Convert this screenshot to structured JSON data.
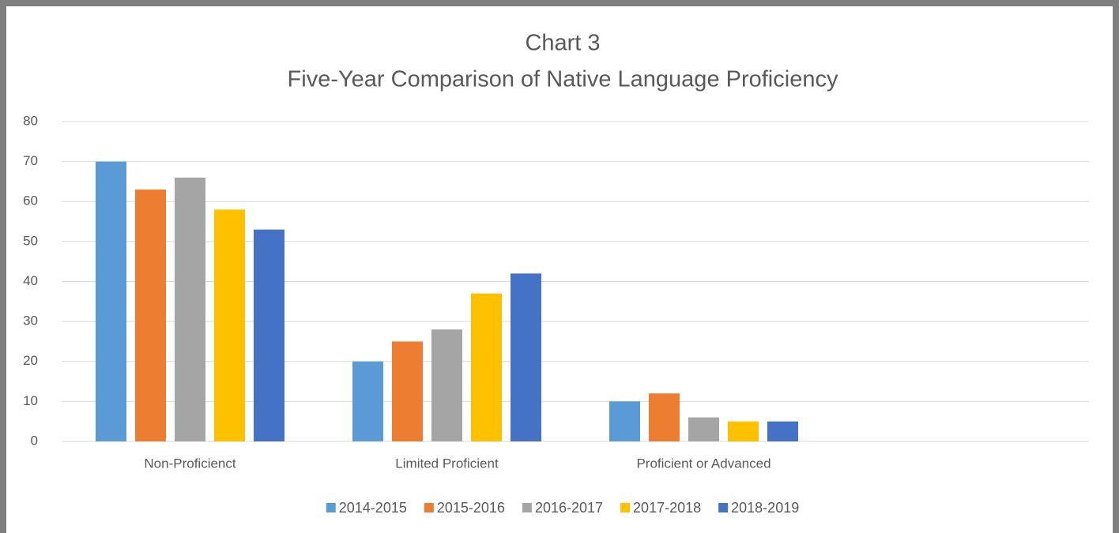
{
  "chart_data": {
    "type": "bar",
    "title": "Chart 3",
    "subtitle": "Five-Year Comparison of Native Language Proficiency",
    "categories": [
      "Non-Proficienct",
      "Limited Proficient",
      "Proficient or Advanced",
      null
    ],
    "series": [
      {
        "name": "2014-2015",
        "color": "#5b9bd5",
        "values": [
          70,
          20,
          10,
          null
        ]
      },
      {
        "name": "2015-2016",
        "color": "#ed7d31",
        "values": [
          63,
          25,
          12,
          null
        ]
      },
      {
        "name": "2016-2017",
        "color": "#a5a5a5",
        "values": [
          66,
          28,
          6,
          null
        ]
      },
      {
        "name": "2017-2018",
        "color": "#ffc000",
        "values": [
          58,
          37,
          5,
          null
        ]
      },
      {
        "name": "2018-2019",
        "color": "#4472c4",
        "values": [
          53,
          42,
          5,
          null
        ]
      }
    ],
    "ylim": [
      0,
      80
    ],
    "yticks": [
      0,
      10,
      20,
      30,
      40,
      50,
      60,
      70,
      80
    ],
    "grid": true,
    "legend": "bottom"
  }
}
